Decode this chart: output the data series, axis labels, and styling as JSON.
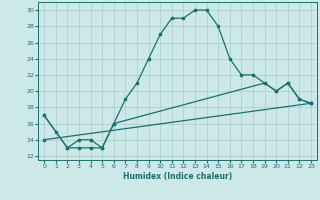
{
  "xlabel": "Humidex (Indice chaleur)",
  "ylabel": "",
  "xlim": [
    -0.5,
    23.5
  ],
  "ylim": [
    11.5,
    31
  ],
  "yticks": [
    12,
    14,
    16,
    18,
    20,
    22,
    24,
    26,
    28,
    30
  ],
  "xticks": [
    0,
    1,
    2,
    3,
    4,
    5,
    6,
    7,
    8,
    9,
    10,
    11,
    12,
    13,
    14,
    15,
    16,
    17,
    18,
    19,
    20,
    21,
    22,
    23
  ],
  "bg_color": "#cce8e8",
  "line_color": "#1a7070",
  "line1_x": [
    0,
    1,
    2,
    3,
    4,
    5,
    6,
    7,
    8,
    9,
    10,
    11,
    12,
    13,
    14,
    15,
    16,
    17,
    18,
    19,
    20,
    21,
    22,
    23
  ],
  "line1_y": [
    17,
    15,
    13,
    13,
    13,
    13,
    16,
    19,
    21,
    24,
    27,
    29,
    29,
    30,
    30,
    28,
    24,
    22,
    22,
    21,
    20,
    21,
    19,
    18.5
  ],
  "line2_x": [
    0,
    2,
    3,
    4,
    5,
    6,
    19,
    20,
    21,
    22,
    23
  ],
  "line2_y": [
    17,
    13,
    14,
    14,
    13,
    16,
    21,
    20,
    21,
    19,
    18.5
  ],
  "line3_x": [
    0,
    23
  ],
  "line3_y": [
    14,
    18.5
  ],
  "font_color": "#1a7070",
  "grid_color": "#aacccc"
}
